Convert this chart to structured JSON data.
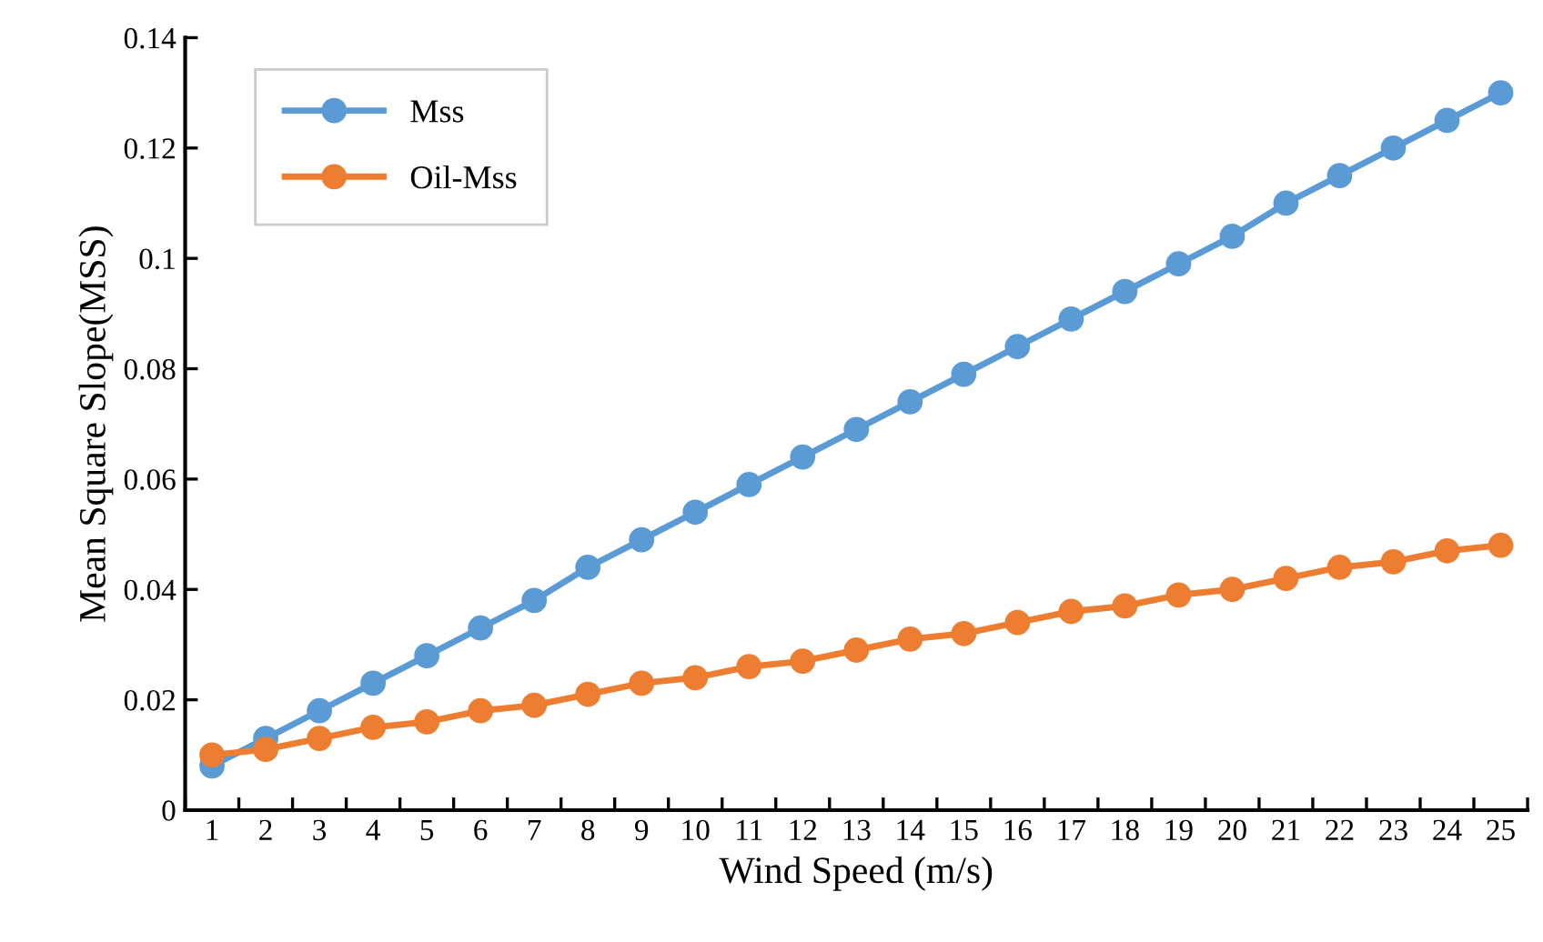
{
  "chart_data": {
    "type": "line",
    "xlabel": "Wind Speed (m/s)",
    "ylabel": "Mean Square Slope(MSS)",
    "categories": [
      "1",
      "2",
      "3",
      "4",
      "5",
      "6",
      "7",
      "8",
      "9",
      "10",
      "11",
      "12",
      "13",
      "14",
      "15",
      "16",
      "17",
      "18",
      "19",
      "20",
      "21",
      "22",
      "23",
      "24",
      "25"
    ],
    "series": [
      {
        "name": "Mss",
        "color": "#5b9bd5",
        "values": [
          0.008,
          0.013,
          0.018,
          0.023,
          0.028,
          0.033,
          0.038,
          0.044,
          0.049,
          0.054,
          0.059,
          0.064,
          0.069,
          0.074,
          0.079,
          0.084,
          0.089,
          0.094,
          0.099,
          0.104,
          0.11,
          0.115,
          0.12,
          0.125,
          0.13
        ]
      },
      {
        "name": "Oil-Mss",
        "color": "#ed7d31",
        "values": [
          0.01,
          0.011,
          0.013,
          0.015,
          0.016,
          0.018,
          0.019,
          0.021,
          0.023,
          0.024,
          0.026,
          0.027,
          0.029,
          0.031,
          0.032,
          0.034,
          0.036,
          0.037,
          0.039,
          0.04,
          0.042,
          0.044,
          0.045,
          0.047,
          0.048
        ]
      }
    ],
    "ylim": [
      0,
      0.14
    ],
    "yticks": [
      0,
      0.02,
      0.04,
      0.06,
      0.08,
      0.1,
      0.12,
      0.14
    ],
    "grid": false,
    "legend": "top left",
    "marker": "circle",
    "line_style": "solid"
  }
}
